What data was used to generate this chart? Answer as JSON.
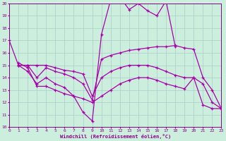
{
  "title": "Windchill (Refroidissement éolien,°C)",
  "bg_color": "#cceedd",
  "line_color": "#aa00aa",
  "grid_color": "#aacccc",
  "ylim": [
    10,
    20
  ],
  "xlim": [
    0,
    23
  ],
  "yticks": [
    10,
    11,
    12,
    13,
    14,
    15,
    16,
    17,
    18,
    19,
    20
  ],
  "xticks": [
    0,
    1,
    2,
    3,
    4,
    5,
    6,
    7,
    8,
    9,
    10,
    11,
    12,
    13,
    14,
    15,
    16,
    17,
    18,
    19,
    20,
    21,
    22,
    23
  ],
  "line1_x": [
    0,
    1,
    2,
    3,
    4,
    5,
    6,
    7,
    8,
    9,
    10,
    11,
    12,
    13,
    14,
    15,
    16,
    17,
    18
  ],
  "line1_y": [
    17.0,
    15.0,
    14.5,
    13.5,
    14.0,
    13.5,
    13.2,
    12.5,
    11.2,
    10.5,
    17.5,
    20.3,
    20.5,
    19.5,
    20.0,
    19.4,
    19.0,
    20.2,
    16.5
  ],
  "line2_x": [
    1,
    2,
    3,
    4,
    5,
    6,
    7,
    8,
    9,
    10,
    11,
    12,
    13,
    14,
    15,
    16,
    17,
    18,
    19,
    20,
    21,
    22,
    23
  ],
  "line2_y": [
    15.0,
    15.0,
    14.0,
    14.8,
    14.5,
    14.3,
    14.0,
    13.5,
    12.2,
    15.5,
    15.8,
    16.0,
    16.2,
    16.3,
    16.4,
    16.5,
    16.5,
    16.6,
    16.4,
    16.3,
    14.0,
    13.0,
    11.5
  ],
  "line3_x": [
    1,
    2,
    3,
    4,
    5,
    6,
    7,
    8,
    9,
    10,
    11,
    12,
    13,
    14,
    15,
    16,
    17,
    18,
    19,
    20,
    21,
    22,
    23
  ],
  "line3_y": [
    15.2,
    14.8,
    13.3,
    13.3,
    13.0,
    12.7,
    12.5,
    12.3,
    12.0,
    12.5,
    13.0,
    13.5,
    13.8,
    14.0,
    14.0,
    13.8,
    13.5,
    13.3,
    13.1,
    14.0,
    11.8,
    11.5,
    11.5
  ],
  "line4_x": [
    1,
    2,
    3,
    4,
    5,
    6,
    7,
    8,
    9,
    10,
    11,
    12,
    13,
    14,
    15,
    16,
    17,
    18,
    19,
    20,
    21,
    22,
    23
  ],
  "line4_y": [
    15.0,
    15.0,
    15.0,
    15.0,
    14.8,
    14.6,
    14.5,
    14.3,
    12.5,
    14.0,
    14.5,
    14.8,
    15.0,
    15.0,
    15.0,
    14.8,
    14.5,
    14.2,
    14.0,
    14.0,
    13.5,
    12.0,
    11.5
  ]
}
